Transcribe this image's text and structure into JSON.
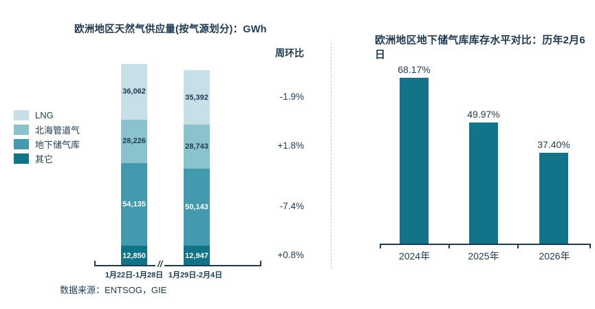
{
  "source_note": {
    "label": "数据来源：ENTSOG，GIE"
  },
  "wow_header": "周环比",
  "colors": {
    "text": "#1d3a52",
    "lng": "#c7e0e7",
    "north_sea": "#8ac2ce",
    "underground": "#4399ad",
    "other": "#0f7488",
    "right_bar": "#117489",
    "divider": "#c8c8c8"
  },
  "chart_data": [
    {
      "type": "bar",
      "stacked": true,
      "title": "欧洲地区天然气供应量(按气源划分)：GWh",
      "unit": "GWh",
      "categories": [
        "1月22日-1月28日",
        "1月29日-2月4日"
      ],
      "axis_break": "//",
      "legend_position": "left",
      "series": [
        {
          "name": "LNG",
          "color": "#c7e0e7",
          "label_color": "#1d3a52",
          "values": [
            36062,
            35392
          ],
          "labels": [
            "36,062",
            "35,392"
          ]
        },
        {
          "name": "北海管道气",
          "color": "#8ac2ce",
          "label_color": "#1d3a52",
          "values": [
            28226,
            28743
          ],
          "labels": [
            "28,226",
            "28,743"
          ]
        },
        {
          "name": "地下储气库",
          "color": "#4399ad",
          "label_color": "#ffffff",
          "values": [
            54135,
            50143
          ],
          "labels": [
            "54,135",
            "50,143"
          ]
        },
        {
          "name": "其它",
          "color": "#0f7488",
          "label_color": "#ffffff",
          "values": [
            12850,
            12947
          ],
          "labels": [
            "12,850",
            "12,947"
          ]
        }
      ],
      "wow_column": {
        "header": "周环比",
        "values": [
          "-1.9%",
          "+1.8%",
          "-7.4%",
          "+0.8%"
        ]
      }
    },
    {
      "type": "bar",
      "title": "欧洲地区地下储气库库存水平对比：历年2月6日",
      "categories": [
        "2024年",
        "2025年",
        "2026年"
      ],
      "values": [
        68.17,
        49.97,
        37.4
      ],
      "value_labels": [
        "68.17%",
        "49.97%",
        "37.40%"
      ],
      "bar_color": "#117489",
      "ylim": [
        0,
        100
      ],
      "grid": false
    }
  ]
}
